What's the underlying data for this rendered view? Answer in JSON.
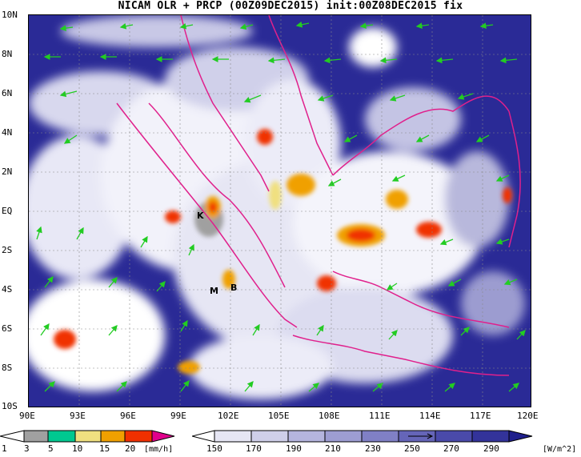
{
  "title": "NICAM OLR + PRCP (00Z09DEC2015) init:00Z08DEC2015 fix",
  "lat_labels": [
    "10N",
    "8N",
    "6N",
    "4N",
    "2N",
    "EQ",
    "2S",
    "4S",
    "6S",
    "8S",
    "10S"
  ],
  "lon_labels": [
    "90E",
    "93E",
    "96E",
    "99E",
    "102E",
    "105E",
    "108E",
    "111E",
    "114E",
    "117E",
    "120E"
  ],
  "map_markers": [
    "K",
    "M",
    "B"
  ],
  "precip_colorbar": {
    "labels": [
      "1",
      "3",
      "5",
      "10",
      "15",
      "20"
    ],
    "units": "[mm/h]",
    "colors": [
      "#ffffff",
      "#a0a0a0",
      "#00c890",
      "#f0e080",
      "#f0a000",
      "#f03000",
      "#e0008c"
    ]
  },
  "olr_colorbar": {
    "labels": [
      "150",
      "170",
      "190",
      "210",
      "230",
      "250",
      "270",
      "290"
    ],
    "units": "[W/m^2]",
    "colors": [
      "#ffffff",
      "#e6e6f4",
      "#cfcfe9",
      "#b5b5de",
      "#9d9dd2",
      "#8080c5",
      "#6565b8",
      "#4a4aaa",
      "#33339a",
      "#1f1f8c"
    ]
  },
  "overlay": {
    "coastline_color": "#e0208c",
    "wind_arrow_color": "#22cc22",
    "background_color": "#2a2a96"
  }
}
